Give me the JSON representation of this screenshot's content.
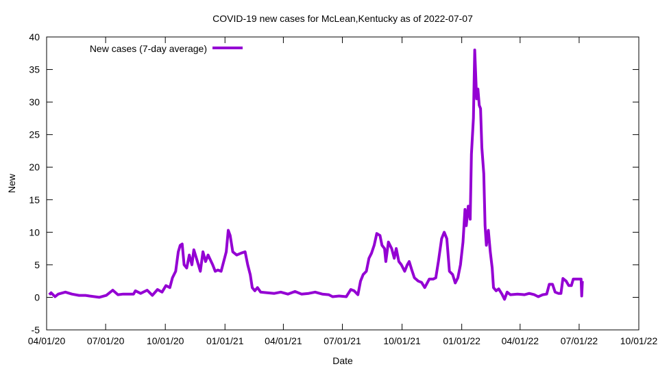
{
  "chart_data": {
    "type": "line",
    "title": "COVID-19 new cases for McLean,Kentucky as of 2022-07-07",
    "xlabel": "Date",
    "ylabel": "New",
    "xlim": [
      "2020-04-01",
      "2022-10-01"
    ],
    "ylim": [
      -5,
      40
    ],
    "grid": false,
    "legend_position": "top-left",
    "x_ticks": [
      "2020-04-01",
      "2020-07-01",
      "2020-10-01",
      "2021-01-01",
      "2021-04-01",
      "2021-07-01",
      "2021-10-01",
      "2022-01-01",
      "2022-04-01",
      "2022-07-01",
      "2022-10-01"
    ],
    "x_tick_labels": [
      "04/01/20",
      "07/01/20",
      "10/01/20",
      "01/01/21",
      "04/01/21",
      "07/01/21",
      "10/01/21",
      "01/01/22",
      "04/01/22",
      "07/01/22",
      "10/01/22"
    ],
    "y_ticks": [
      -5,
      0,
      5,
      10,
      15,
      20,
      25,
      30,
      35,
      40
    ],
    "y_tick_labels": [
      "-5",
      "0",
      "5",
      "10",
      "15",
      "20",
      "25",
      "30",
      "35",
      "40"
    ],
    "series": [
      {
        "name": "New cases (7-day average)",
        "color": "#9400d3",
        "x": [
          "2020-04-05",
          "2020-04-08",
          "2020-04-14",
          "2020-04-19",
          "2020-04-30",
          "2020-05-10",
          "2020-05-21",
          "2020-05-31",
          "2020-06-06",
          "2020-06-21",
          "2020-07-02",
          "2020-07-12",
          "2020-07-20",
          "2020-07-28",
          "2020-08-13",
          "2020-08-16",
          "2020-08-24",
          "2020-09-03",
          "2020-09-11",
          "2020-09-19",
          "2020-09-26",
          "2020-10-02",
          "2020-10-08",
          "2020-10-12",
          "2020-10-17",
          "2020-10-21",
          "2020-10-24",
          "2020-10-27",
          "2020-10-30",
          "2020-11-03",
          "2020-11-07",
          "2020-11-11",
          "2020-11-14",
          "2020-11-18",
          "2020-11-24",
          "2020-11-28",
          "2020-12-02",
          "2020-12-06",
          "2020-12-13",
          "2020-12-17",
          "2020-12-21",
          "2020-12-26",
          "2021-01-03",
          "2021-01-06",
          "2021-01-09",
          "2021-01-13",
          "2021-01-19",
          "2021-01-26",
          "2021-02-01",
          "2021-02-05",
          "2021-02-09",
          "2021-02-12",
          "2021-02-16",
          "2021-02-20",
          "2021-02-25",
          "2021-03-07",
          "2021-03-18",
          "2021-03-28",
          "2021-04-08",
          "2021-04-19",
          "2021-04-29",
          "2021-05-10",
          "2021-05-20",
          "2021-05-31",
          "2021-06-10",
          "2021-06-16",
          "2021-06-26",
          "2021-07-07",
          "2021-07-14",
          "2021-07-19",
          "2021-07-25",
          "2021-07-29",
          "2021-08-02",
          "2021-08-07",
          "2021-08-11",
          "2021-08-15",
          "2021-08-19",
          "2021-08-23",
          "2021-08-28",
          "2021-08-31",
          "2021-09-04",
          "2021-09-06",
          "2021-09-10",
          "2021-09-15",
          "2021-09-19",
          "2021-09-22",
          "2021-09-26",
          "2021-09-30",
          "2021-10-05",
          "2021-10-09",
          "2021-10-12",
          "2021-10-16",
          "2021-10-20",
          "2021-10-26",
          "2021-10-31",
          "2021-11-05",
          "2021-11-12",
          "2021-11-18",
          "2021-11-22",
          "2021-11-26",
          "2021-12-01",
          "2021-12-05",
          "2021-12-09",
          "2021-12-13",
          "2021-12-18",
          "2021-12-22",
          "2021-12-26",
          "2021-12-30",
          "2022-01-03",
          "2022-01-06",
          "2022-01-08",
          "2022-01-11",
          "2022-01-14",
          "2022-01-16",
          "2022-01-19",
          "2022-01-21",
          "2022-01-24",
          "2022-01-26",
          "2022-01-28",
          "2022-01-30",
          "2022-02-01",
          "2022-02-04",
          "2022-02-06",
          "2022-02-08",
          "2022-02-11",
          "2022-02-14",
          "2022-02-17",
          "2022-02-19",
          "2022-02-23",
          "2022-02-27",
          "2022-03-04",
          "2022-03-08",
          "2022-03-12",
          "2022-03-17",
          "2022-03-28",
          "2022-04-08",
          "2022-04-15",
          "2022-04-23",
          "2022-04-29",
          "2022-05-06",
          "2022-05-12",
          "2022-05-16",
          "2022-05-21",
          "2022-05-25",
          "2022-05-30",
          "2022-06-03",
          "2022-06-06",
          "2022-06-11",
          "2022-06-15",
          "2022-06-19",
          "2022-06-22",
          "2022-07-02",
          "2022-07-04",
          "2022-07-05",
          "2022-07-06"
        ],
        "y": [
          0.4,
          0.7,
          0.1,
          0.5,
          0.8,
          0.5,
          0.3,
          0.3,
          0.2,
          0.0,
          0.3,
          1.1,
          0.4,
          0.5,
          0.5,
          1.0,
          0.6,
          1.1,
          0.3,
          1.2,
          0.8,
          1.8,
          1.5,
          3.0,
          4.0,
          7.0,
          8.0,
          8.2,
          5.0,
          4.5,
          6.5,
          5.0,
          7.3,
          6.0,
          4.0,
          7.0,
          5.5,
          6.5,
          5.0,
          4.0,
          4.2,
          4.0,
          7.0,
          10.3,
          9.5,
          7.0,
          6.5,
          6.8,
          7.0,
          5.0,
          3.5,
          1.5,
          1.0,
          1.5,
          0.8,
          0.7,
          0.6,
          0.8,
          0.5,
          0.9,
          0.5,
          0.6,
          0.8,
          0.5,
          0.4,
          0.1,
          0.2,
          0.1,
          1.2,
          1.0,
          0.4,
          2.5,
          3.5,
          4.0,
          6.0,
          6.8,
          8.0,
          9.8,
          9.5,
          8.0,
          7.5,
          5.5,
          8.5,
          7.5,
          6.0,
          7.5,
          5.5,
          5.0,
          4.0,
          5.0,
          5.5,
          4.2,
          3.0,
          2.5,
          2.3,
          1.5,
          2.8,
          2.8,
          3.0,
          5.5,
          9.0,
          10.0,
          9.0,
          4.0,
          3.5,
          2.2,
          3.0,
          5.0,
          8.5,
          13.5,
          11.0,
          14.0,
          12.0,
          22.0,
          27.5,
          38.0,
          30.5,
          32.0,
          29.5,
          29.0,
          23.0,
          19.0,
          11.0,
          8.0,
          10.3,
          7.0,
          4.5,
          1.5,
          1.0,
          1.3,
          0.5,
          -0.3,
          0.8,
          0.4,
          0.5,
          0.4,
          0.6,
          0.4,
          0.1,
          0.4,
          0.5,
          2.0,
          2.0,
          0.8,
          0.6,
          0.6,
          2.9,
          2.5,
          1.8,
          1.8,
          2.8,
          2.8,
          2.8,
          0.2,
          2.5
        ]
      }
    ]
  }
}
